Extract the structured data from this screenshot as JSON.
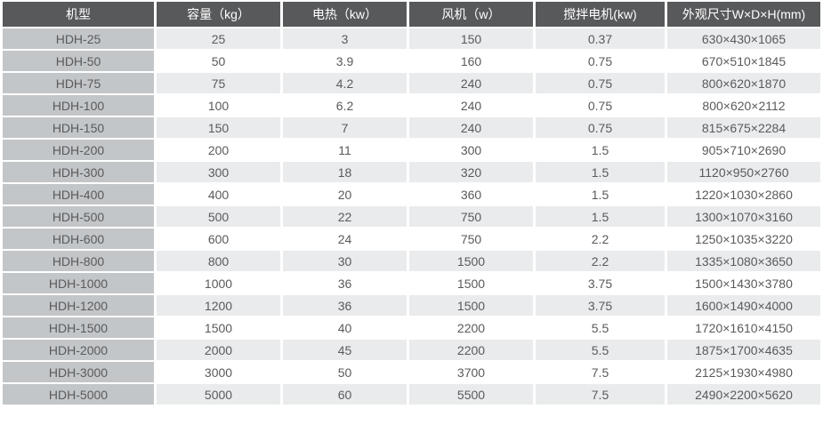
{
  "chart_data": {
    "type": "table",
    "columns": [
      "机型",
      "容量（kg）",
      "电热（kw）",
      "风机（w）",
      "搅拌电机(kw)",
      "外观尺寸W×D×H(mm)"
    ],
    "rows": [
      [
        "HDH-25",
        "25",
        "3",
        "150",
        "0.37",
        "630×430×1065"
      ],
      [
        "HDH-50",
        "50",
        "3.9",
        "160",
        "0.75",
        "670×510×1845"
      ],
      [
        "HDH-75",
        "75",
        "4.2",
        "240",
        "0.75",
        "800×620×1870"
      ],
      [
        "HDH-100",
        "100",
        "6.2",
        "240",
        "0.75",
        "800×620×2112"
      ],
      [
        "HDH-150",
        "150",
        "7",
        "240",
        "0.75",
        "815×675×2284"
      ],
      [
        "HDH-200",
        "200",
        "11",
        "300",
        "1.5",
        "905×710×2690"
      ],
      [
        "HDH-300",
        "300",
        "18",
        "320",
        "1.5",
        "1120×950×2760"
      ],
      [
        "HDH-400",
        "400",
        "20",
        "360",
        "1.5",
        "1220×1030×2860"
      ],
      [
        "HDH-500",
        "500",
        "22",
        "750",
        "1.5",
        "1300×1070×3160"
      ],
      [
        "HDH-600",
        "600",
        "24",
        "750",
        "2.2",
        "1250×1035×3220"
      ],
      [
        "HDH-800",
        "800",
        "30",
        "1500",
        "2.2",
        "1335×1080×3650"
      ],
      [
        "HDH-1000",
        "1000",
        "36",
        "1500",
        "3.75",
        "1500×1430×3780"
      ],
      [
        "HDH-1200",
        "1200",
        "36",
        "1500",
        "3.75",
        "1600×1490×4000"
      ],
      [
        "HDH-1500",
        "1500",
        "40",
        "2200",
        "5.5",
        "1720×1610×4150"
      ],
      [
        "HDH-2000",
        "2000",
        "45",
        "2200",
        "5.5",
        "1875×1700×4635"
      ],
      [
        "HDH-3000",
        "3000",
        "50",
        "3700",
        "7.5",
        "2125×1930×4980"
      ],
      [
        "HDH-5000",
        "5000",
        "60",
        "5500",
        "7.5",
        "2490×2200×5620"
      ]
    ],
    "column_keys": [
      "model",
      "capacity_kg",
      "heater_kw",
      "fan_w",
      "mixer_motor_kw",
      "dimensions_wdh_mm"
    ],
    "title": "",
    "legend": null,
    "grid": "white separators between cells"
  },
  "colors": {
    "header_bg": "#58595b",
    "header_text": "#ffffff",
    "model_col_bg": "#c3c6c8",
    "stripe_row_bg": "#e9ebec",
    "white_row_bg": "#ffffff",
    "body_text": "#595a5c"
  }
}
